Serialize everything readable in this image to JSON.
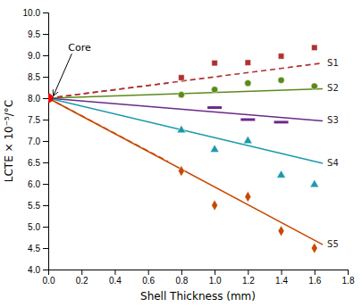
{
  "chart_data": {
    "type": "line",
    "xlabel": "Shell Thickness (mm)",
    "ylabel": "LCTE × 10⁻⁵/°C",
    "xlim": [
      0,
      1.8
    ],
    "ylim": [
      4.0,
      10.0
    ],
    "xticks": [
      {
        "value": 0,
        "label": "0.0"
      },
      0.2,
      0.4,
      0.6,
      0.8,
      {
        "value": 1.0,
        "label": "1.0"
      },
      1.2,
      1.4,
      1.6,
      1.8
    ],
    "yticks": [
      {
        "value": 4.0,
        "label": "4.0"
      },
      4.5,
      {
        "value": 5.0,
        "label": "5.0"
      },
      5.5,
      {
        "value": 6.0,
        "label": "6.0"
      },
      6.5,
      {
        "value": 7.0,
        "label": "7.0"
      },
      7.5,
      {
        "value": 8.0,
        "label": "8.0"
      },
      8.5,
      {
        "value": 9.0,
        "label": "9.0"
      },
      9.5,
      {
        "value": 10.0,
        "label": "10.0"
      }
    ],
    "grid": false,
    "series": [
      {
        "name": "S1",
        "color": "#b03030",
        "line_style": "dashed",
        "marker": "square",
        "line_x": [
          0.0,
          1.65
        ],
        "line_values": [
          8.0,
          8.82
        ],
        "x": [
          0.8,
          1.0,
          1.2,
          1.4,
          1.6
        ],
        "values": [
          8.48,
          8.82,
          8.83,
          8.98,
          9.18
        ]
      },
      {
        "name": "S2",
        "color": "#5a8a1a",
        "line_style": "solid",
        "marker": "circle",
        "line_x": [
          0.0,
          1.65
        ],
        "line_values": [
          8.0,
          8.22
        ],
        "x": [
          0.8,
          1.0,
          1.2,
          1.4,
          1.6
        ],
        "values": [
          8.08,
          8.2,
          8.35,
          8.42,
          8.28
        ]
      },
      {
        "name": "S3",
        "color": "#6a2a88",
        "line_style": "solid",
        "marker": "dash",
        "line_x": [
          0.0,
          1.65
        ],
        "line_values": [
          8.0,
          7.47
        ],
        "x": [
          1.0,
          1.2,
          1.4
        ],
        "values": [
          7.78,
          7.5,
          7.44
        ]
      },
      {
        "name": "S4",
        "color": "#1a9aaa",
        "line_style": "solid",
        "marker": "triangle",
        "line_x": [
          0.0,
          1.65
        ],
        "line_values": [
          8.0,
          6.48
        ],
        "x": [
          0.8,
          1.0,
          1.2,
          1.4,
          1.6
        ],
        "values": [
          7.25,
          6.8,
          7.0,
          6.2,
          5.98
        ]
      },
      {
        "name": "S5",
        "color": "#c84800",
        "line_style": "solid",
        "marker": "diamond",
        "line_x": [
          0.0,
          1.65
        ],
        "line_values": [
          8.0,
          4.58
        ],
        "x": [
          0.8,
          1.0,
          1.2,
          1.4,
          1.6
        ],
        "values": [
          6.3,
          5.5,
          5.7,
          4.9,
          4.5
        ]
      }
    ],
    "extra_lines": [
      {
        "color": "#c84800",
        "line_style": "dashed",
        "x": [
          0.0,
          0.72
        ],
        "values": [
          8.0,
          6.52
        ]
      },
      {
        "color": "#b03030",
        "line_style": "dashed",
        "x": [
          0.0,
          0.72
        ],
        "values": [
          8.0,
          8.35
        ]
      }
    ],
    "points": [
      {
        "x": 0.0,
        "y": 8.0,
        "color": "red"
      }
    ],
    "annotations": [
      {
        "text": "Core",
        "x": 0.03,
        "y": 8.05,
        "text_x": 0.12,
        "text_y": 9.1
      }
    ]
  }
}
